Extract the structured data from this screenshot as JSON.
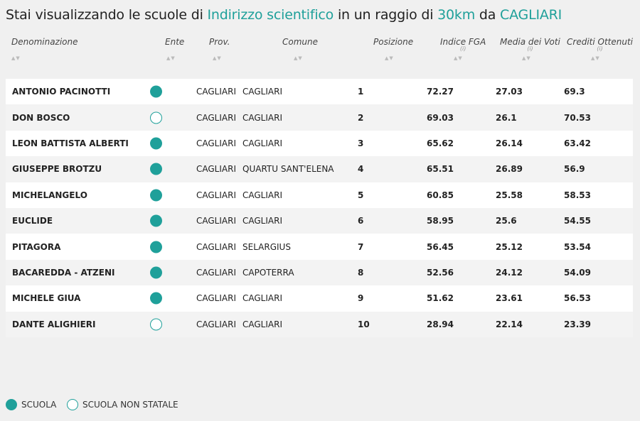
{
  "title": {
    "prefix": "Stai visualizzando le scuole di ",
    "indirizzo": "Indirizzo scientifico",
    "middle": " in un raggio di ",
    "raggio": "30km",
    "da": " da ",
    "citta": "CAGLIARI"
  },
  "headers": {
    "denominazione": "Denominazione",
    "ente": "Ente",
    "prov": "Prov.",
    "comune": "Comune",
    "posizione": "Posizione",
    "indice_fga": "Indice FGA",
    "media_voti": "Media dei Voti",
    "crediti": "Crediti Ottenuti",
    "info_mark": "(i)",
    "sort_icon": "▲▼"
  },
  "rows": [
    {
      "name": "ANTONIO PACINOTTI",
      "ente": "statale",
      "prov": "CAGLIARI",
      "comune": "CAGLIARI",
      "pos": "1",
      "fga": "72.27",
      "media": "27.03",
      "crediti": "69.3"
    },
    {
      "name": "DON BOSCO",
      "ente": "non-statale",
      "prov": "CAGLIARI",
      "comune": "CAGLIARI",
      "pos": "2",
      "fga": "69.03",
      "media": "26.1",
      "crediti": "70.53"
    },
    {
      "name": "LEON BATTISTA ALBERTI",
      "ente": "statale",
      "prov": "CAGLIARI",
      "comune": "CAGLIARI",
      "pos": "3",
      "fga": "65.62",
      "media": "26.14",
      "crediti": "63.42"
    },
    {
      "name": "GIUSEPPE BROTZU",
      "ente": "statale",
      "prov": "CAGLIARI",
      "comune": "QUARTU SANT'ELENA",
      "pos": "4",
      "fga": "65.51",
      "media": "26.89",
      "crediti": "56.9"
    },
    {
      "name": "MICHELANGELO",
      "ente": "statale",
      "prov": "CAGLIARI",
      "comune": "CAGLIARI",
      "pos": "5",
      "fga": "60.85",
      "media": "25.58",
      "crediti": "58.53"
    },
    {
      "name": "EUCLIDE",
      "ente": "statale",
      "prov": "CAGLIARI",
      "comune": "CAGLIARI",
      "pos": "6",
      "fga": "58.95",
      "media": "25.6",
      "crediti": "54.55"
    },
    {
      "name": "PITAGORA",
      "ente": "statale",
      "prov": "CAGLIARI",
      "comune": "SELARGIUS",
      "pos": "7",
      "fga": "56.45",
      "media": "25.12",
      "crediti": "53.54"
    },
    {
      "name": "BACAREDDA - ATZENI",
      "ente": "statale",
      "prov": "CAGLIARI",
      "comune": "CAPOTERRA",
      "pos": "8",
      "fga": "52.56",
      "media": "24.12",
      "crediti": "54.09"
    },
    {
      "name": "MICHELE GIUA",
      "ente": "statale",
      "prov": "CAGLIARI",
      "comune": "CAGLIARI",
      "pos": "9",
      "fga": "51.62",
      "media": "23.61",
      "crediti": "56.53"
    },
    {
      "name": "DANTE ALIGHIERI",
      "ente": "non-statale",
      "prov": "CAGLIARI",
      "comune": "CAGLIARI",
      "pos": "10",
      "fga": "28.94",
      "media": "22.14",
      "crediti": "23.39"
    }
  ],
  "legend": {
    "scuola": "SCUOLA",
    "non_statale": "SCUOLA NON STATALE"
  },
  "colors": {
    "accent": "#1fa09a"
  }
}
